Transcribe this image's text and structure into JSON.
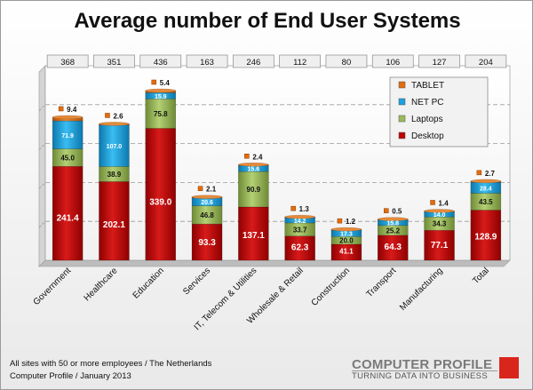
{
  "title": "Average number of End User Systems",
  "footer": {
    "line1": "All sites with 50 or more employees / The Netherlands",
    "line2": "Computer Profile / January 2013"
  },
  "logo": {
    "name": "COMPUTER PROFILE",
    "tagline": "TURNING DATA INTO BUSINESS"
  },
  "colors": {
    "desktop": "#c00000",
    "laptops": "#9bbb59",
    "netpc": "#1ba1e2",
    "tablet": "#e46c0a",
    "brand": "#d9261c"
  },
  "chart_data": {
    "type": "bar",
    "stacked": true,
    "title": "Average number of End User Systems",
    "categories": [
      "Government",
      "Healthcare",
      "Education",
      "Services",
      "IT, Telecom & Utilities",
      "Wholesale & Retail",
      "Construction",
      "Transport",
      "Manufacturing",
      "Total"
    ],
    "totals": [
      368,
      351,
      436,
      163,
      246,
      112,
      80,
      106,
      127,
      204
    ],
    "series": [
      {
        "name": "Desktop",
        "values": [
          241.4,
          202.1,
          339.0,
          93.3,
          137.1,
          62.3,
          41.1,
          64.3,
          77.1,
          128.9
        ]
      },
      {
        "name": "Laptops",
        "values": [
          45.0,
          38.9,
          75.8,
          46.8,
          90.9,
          33.7,
          20.0,
          25.2,
          34.3,
          43.5
        ]
      },
      {
        "name": "NET PC",
        "values": [
          71.9,
          107.0,
          15.9,
          20.6,
          15.6,
          14.2,
          17.3,
          15.8,
          14.0,
          28.4
        ]
      },
      {
        "name": "TABLET",
        "values": [
          9.4,
          2.6,
          5.4,
          2.1,
          2.4,
          1.3,
          1.2,
          0.5,
          1.4,
          2.7
        ]
      }
    ],
    "legend_order": [
      "TABLET",
      "NET PC",
      "Laptops",
      "Desktop"
    ],
    "legend_position": "top-right",
    "ylim": [
      0,
      500
    ],
    "grid": true
  }
}
